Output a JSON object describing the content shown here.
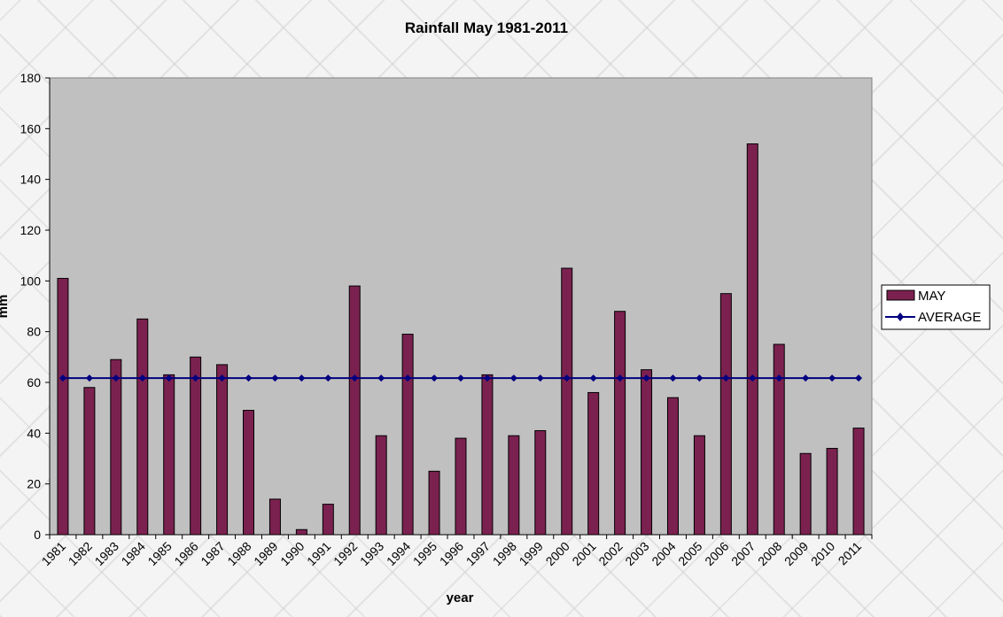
{
  "chart_data": {
    "type": "bar",
    "title": "Rainfall May 1981-2011",
    "xlabel": "year",
    "ylabel": "mm",
    "ylim": [
      0,
      180
    ],
    "yticks": [
      0,
      20,
      40,
      60,
      80,
      100,
      120,
      140,
      160,
      180
    ],
    "grid": false,
    "legend_position": "right",
    "categories": [
      "1981",
      "1982",
      "1983",
      "1984",
      "1985",
      "1986",
      "1987",
      "1988",
      "1989",
      "1990",
      "1991",
      "1992",
      "1993",
      "1994",
      "1995",
      "1996",
      "1997",
      "1998",
      "1999",
      "2000",
      "2001",
      "2002",
      "2003",
      "2004",
      "2005",
      "2006",
      "2007",
      "2008",
      "2009",
      "2010",
      "2011"
    ],
    "series": [
      {
        "name": "MAY",
        "type": "bar",
        "color": "#7b2150",
        "values": [
          101,
          58,
          69,
          85,
          63,
          70,
          67,
          49,
          14,
          2,
          12,
          98,
          39,
          79,
          25,
          38,
          63,
          39,
          41,
          105,
          56,
          88,
          65,
          54,
          39,
          95,
          154,
          75,
          32,
          34,
          42
        ]
      },
      {
        "name": "AVERAGE",
        "type": "line",
        "color": "#000080",
        "marker": "diamond",
        "values": [
          61.7,
          61.7,
          61.7,
          61.7,
          61.7,
          61.7,
          61.7,
          61.7,
          61.7,
          61.7,
          61.7,
          61.7,
          61.7,
          61.7,
          61.7,
          61.7,
          61.7,
          61.7,
          61.7,
          61.7,
          61.7,
          61.7,
          61.7,
          61.7,
          61.7,
          61.7,
          61.7,
          61.7,
          61.7,
          61.7,
          61.7
        ]
      }
    ],
    "plot_background": "#c0c0c0"
  }
}
